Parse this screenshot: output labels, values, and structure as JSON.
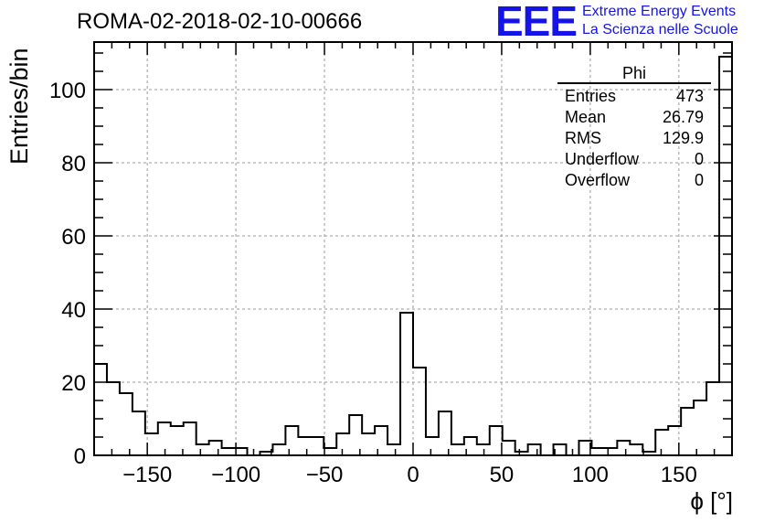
{
  "chart_data": {
    "type": "bar",
    "title": "ROMA-02-2018-02-10-00666",
    "xlabel": "ϕ [°]",
    "ylabel": "Entries/bin",
    "xlim": [
      -180,
      180
    ],
    "ylim": [
      0,
      113
    ],
    "bin_width": 7.2,
    "grid": true,
    "x_ticks": [
      -150,
      -100,
      -50,
      0,
      50,
      100,
      150
    ],
    "x_tick_labels": [
      "−150",
      "−100",
      "−50",
      "0",
      "50",
      "100",
      "150"
    ],
    "y_ticks": [
      0,
      20,
      40,
      60,
      80,
      100
    ],
    "y_tick_labels": [
      "0",
      "20",
      "40",
      "60",
      "80",
      "100"
    ],
    "values": [
      25,
      20,
      17,
      12,
      6,
      9,
      8,
      9,
      3,
      4,
      2,
      2,
      0,
      1,
      3,
      8,
      5,
      5,
      2,
      6,
      11,
      6,
      8,
      3,
      39,
      24,
      5,
      12,
      3,
      5,
      3,
      8,
      4,
      1,
      3,
      0,
      3,
      0,
      4,
      2,
      2,
      4,
      3,
      1,
      7,
      8,
      13,
      15,
      20,
      109
    ]
  },
  "stats": {
    "title": "Phi",
    "rows": [
      {
        "label": "Entries",
        "value": "473"
      },
      {
        "label": "Mean",
        "value": "26.79"
      },
      {
        "label": "RMS",
        "value": "129.9"
      },
      {
        "label": "Underflow",
        "value": "0"
      },
      {
        "label": "Overflow",
        "value": "0"
      }
    ]
  },
  "logo": {
    "mark": "EEE",
    "line1": "Extreme Energy Events",
    "line2": "La Scienza nelle Scuole"
  },
  "colors": {
    "logo": "#1414e6",
    "line": "#000000",
    "grid": "#9a9a9a"
  }
}
